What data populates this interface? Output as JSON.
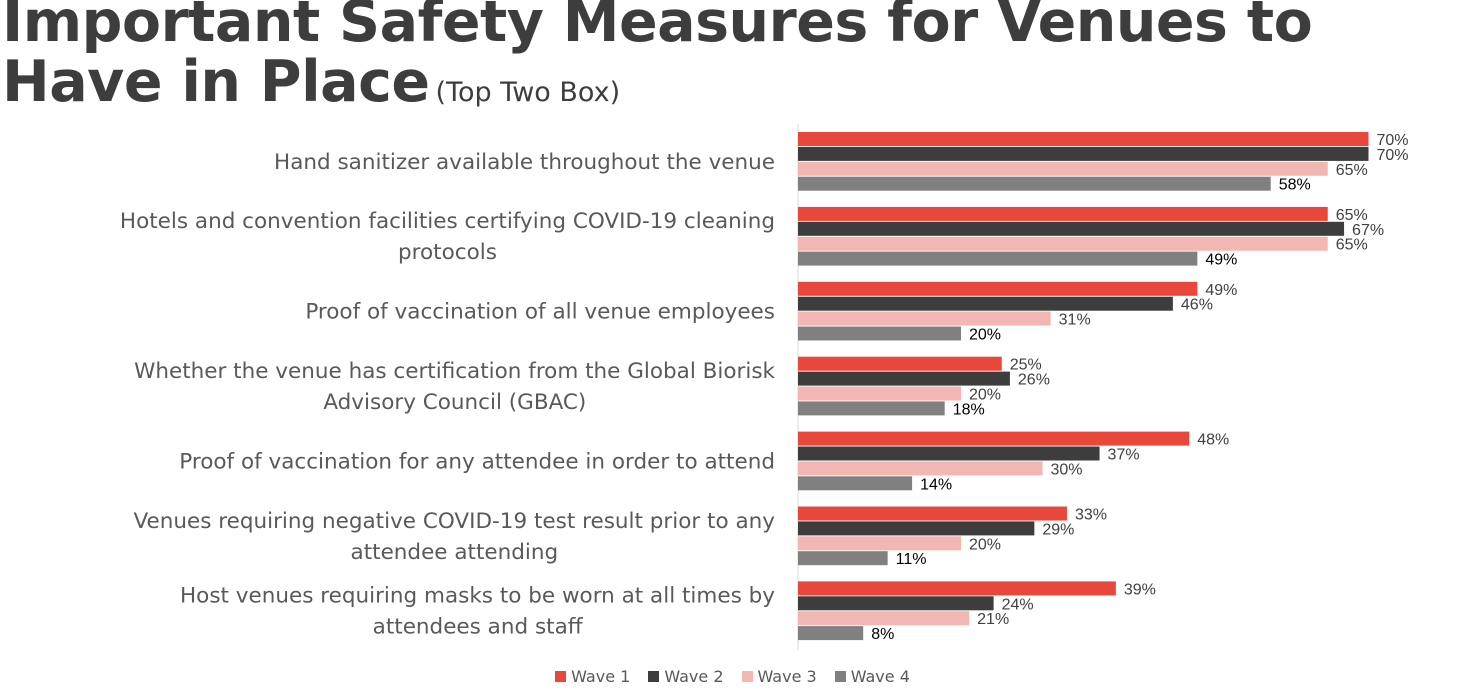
{
  "title": {
    "main": "Important Safety Measures for Venues to Have in Place",
    "subtitle": "(Top Two Box)"
  },
  "chart_data": {
    "type": "bar",
    "orientation": "horizontal",
    "title": "Important Safety Measures for Venues to Have in Place (Top Two Box)",
    "xlabel": "",
    "ylabel": "",
    "xlim": [
      0,
      100
    ],
    "grid": false,
    "legend_position": "bottom",
    "value_suffix": "%",
    "categories": [
      [
        "Hand sanitizer available throughout the venue"
      ],
      [
        "Hotels and convention facilities certifying COVID-19 cleaning",
        "protocols"
      ],
      [
        "Proof of vaccination of all venue employees"
      ],
      [
        "Whether the venue has certification from the Global Biorisk",
        "Advisory Council (GBAC)"
      ],
      [
        "Proof of vaccination for any attendee in order to attend"
      ],
      [
        "Venues requiring negative COVID-19 test result prior to any",
        "attendee attending"
      ],
      [
        "Host venues requiring masks to be worn at all times by",
        "attendees and staff"
      ]
    ],
    "series": [
      {
        "name": "Wave 1",
        "color": "#e8473c",
        "values": [
          70,
          65,
          49,
          25,
          48,
          33,
          39
        ]
      },
      {
        "name": "Wave 2",
        "color": "#3d3d3d",
        "values": [
          70,
          67,
          46,
          26,
          37,
          29,
          24
        ]
      },
      {
        "name": "Wave 3",
        "color": "#f2b7b3",
        "values": [
          65,
          65,
          31,
          20,
          30,
          20,
          21
        ]
      },
      {
        "name": "Wave 4",
        "color": "#808080",
        "values": [
          58,
          49,
          20,
          18,
          14,
          11,
          8
        ]
      }
    ]
  }
}
